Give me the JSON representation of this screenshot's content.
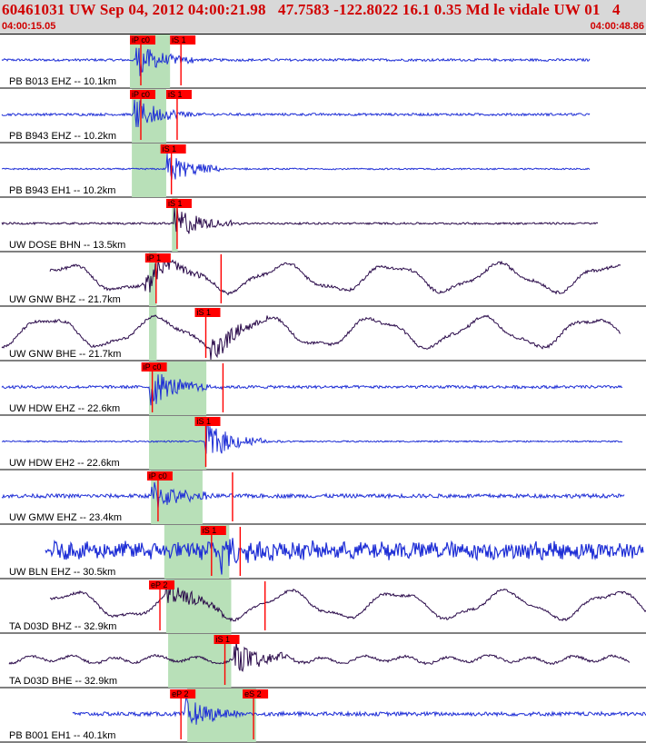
{
  "header": {
    "title": "60461031 UW Sep 04, 2012 04:00:21.98   47.7583 -122.8022 16.1 0.35 Md le vidale UW 01   4",
    "time_start": "04:00:15.05",
    "time_end": "04:00:48.86"
  },
  "colors": {
    "header_bg": "#d8d8d8",
    "title_red": "#d00000",
    "trace_blue": "#1f2fd6",
    "trace_dark": "#2a0a4a",
    "pick_red": "#ff0000",
    "window_green": "#b8e0b8"
  },
  "chart_data": {
    "type": "line",
    "x_range_seconds": [
      0,
      33.81
    ],
    "panels": [
      {
        "label": "PB B013 EHZ -- 10.1km",
        "color": "blue",
        "kind": "hf",
        "onset": 7.1,
        "trace_end": 30.9,
        "amp": 0.55,
        "noise": 0.05,
        "lp": 0,
        "picks": [
          {
            "label": "iP c0",
            "t": 6.8
          },
          {
            "label": "iS 1",
            "t": 8.9
          }
        ],
        "win": [
          6.8,
          8.9
        ]
      },
      {
        "label": "PB B943 EHZ -- 10.2km",
        "color": "blue",
        "kind": "hf",
        "onset": 7.0,
        "trace_end": 30.9,
        "amp": 0.55,
        "noise": 0.05,
        "lp": 0,
        "picks": [
          {
            "label": "iP c0",
            "t": 6.8
          },
          {
            "label": "iS 1",
            "t": 8.7
          }
        ],
        "win": [
          6.9,
          8.7
        ]
      },
      {
        "label": "PB B943 EH1 -- 10.2km",
        "color": "blue",
        "kind": "hf",
        "onset": 8.7,
        "trace_end": 30.9,
        "amp": 0.5,
        "noise": 0.03,
        "lp": 0,
        "picks": [
          {
            "label": "iS 1",
            "t": 8.4
          }
        ],
        "win": [
          6.9,
          8.7
        ]
      },
      {
        "label": "UW DOSE BHN -- 13.5km",
        "color": "dark",
        "kind": "hf",
        "onset": 9.1,
        "trace_end": 31.3,
        "amp": 0.6,
        "noise": 0.04,
        "lp": 0,
        "picks": [
          {
            "label": "iS 1",
            "t": 8.7
          }
        ],
        "win": [
          9.0,
          9.3
        ]
      },
      {
        "label": "UW GNW BHZ -- 21.7km",
        "color": "dark",
        "kind": "lp",
        "onset": 7.6,
        "trace_end": 32.5,
        "amp": 0.4,
        "noise": 0.06,
        "lp": 0.5,
        "picks": [
          {
            "label": "iP 1",
            "t": 7.6
          },
          {
            "label": "",
            "t": 11.0
          }
        ],
        "win": [
          7.8,
          8.2
        ]
      },
      {
        "label": "UW GNW BHE -- 21.7km",
        "color": "dark",
        "kind": "lp",
        "onset": 11.0,
        "trace_end": 32.5,
        "amp": 0.4,
        "noise": 0.06,
        "lp": 0.55,
        "picks": [
          {
            "label": "iS 1",
            "t": 10.2
          }
        ],
        "win": [
          7.8,
          8.2
        ]
      },
      {
        "label": "UW HDW EHZ -- 22.6km",
        "color": "blue",
        "kind": "hf",
        "onset": 7.8,
        "trace_end": 32.6,
        "amp": 0.7,
        "noise": 0.06,
        "lp": 0,
        "picks": [
          {
            "label": "iP c0",
            "t": 7.4
          },
          {
            "label": "",
            "t": 11.1
          }
        ],
        "win": [
          7.8,
          10.8
        ]
      },
      {
        "label": "UW HDW EH2 -- 22.6km",
        "color": "blue",
        "kind": "hf",
        "onset": 10.7,
        "trace_end": 32.6,
        "amp": 0.7,
        "noise": 0.03,
        "lp": 0,
        "picks": [
          {
            "label": "iS 1",
            "t": 10.2
          }
        ],
        "win": [
          7.8,
          10.8
        ]
      },
      {
        "label": "UW GMW EHZ -- 23.4km",
        "color": "blue",
        "kind": "hf",
        "onset": 7.9,
        "trace_end": 32.7,
        "amp": 0.55,
        "noise": 0.08,
        "lp": 0,
        "picks": [
          {
            "label": "iP c0",
            "t": 7.7
          },
          {
            "label": "",
            "t": 11.6
          }
        ],
        "win": [
          7.9,
          10.6
        ]
      },
      {
        "label": "UW BLN EHZ -- 30.5km",
        "color": "blue",
        "kind": "noisy",
        "onset": 11.5,
        "trace_end": 33.7,
        "amp": 0.6,
        "noise": 0.32,
        "lp": 0,
        "picks": [
          {
            "label": "iS 1",
            "t": 10.5
          },
          {
            "label": "",
            "t": 12.0
          }
        ],
        "win": [
          8.6,
          12.0
        ]
      },
      {
        "label": "TA D03D BHZ -- 32.9km",
        "color": "dark",
        "kind": "lp",
        "onset": 8.7,
        "trace_end": 34.0,
        "amp": 0.45,
        "noise": 0.05,
        "lp": 0.5,
        "picks": [
          {
            "label": "eP 2",
            "t": 7.8
          },
          {
            "label": "",
            "t": 13.3
          }
        ],
        "win": [
          8.7,
          12.1
        ]
      },
      {
        "label": "TA D03D BHE -- 32.9km",
        "color": "dark",
        "kind": "hf",
        "onset": 12.2,
        "trace_end": 33.0,
        "amp": 0.55,
        "noise": 0.05,
        "lp": 0.05,
        "picks": [
          {
            "label": "iS 1",
            "t": 11.2
          }
        ],
        "win": [
          8.8,
          12.1
        ]
      },
      {
        "label": "PB B001 EH1 -- 40.1km",
        "color": "blue",
        "kind": "hf",
        "onset": 9.7,
        "trace_end": 34.0,
        "amp": 0.55,
        "noise": 0.08,
        "lp": 0,
        "picks": [
          {
            "label": "eP 2",
            "t": 8.9
          },
          {
            "label": "eS 2",
            "t": 12.7
          }
        ],
        "win": [
          9.8,
          13.4
        ]
      }
    ]
  }
}
